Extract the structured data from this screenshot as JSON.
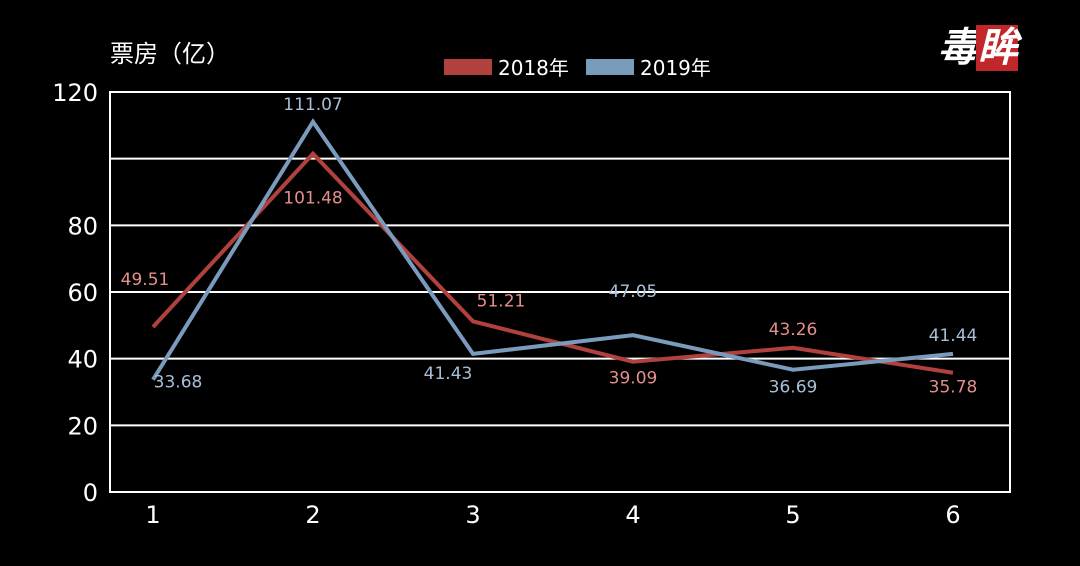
{
  "logo": {
    "char1": "毒",
    "char2": "眸"
  },
  "colors": {
    "background": "#000000",
    "axis": "#ffffff",
    "grid": "#ffffff"
  },
  "chart_data": {
    "type": "line",
    "title": "",
    "xlabel": "",
    "ylabel": "票房（亿）",
    "categories": [
      "1",
      "2",
      "3",
      "4",
      "5",
      "6"
    ],
    "ylim": [
      0,
      120
    ],
    "yticks": [
      "0",
      "20",
      "40",
      "60",
      "80",
      "120"
    ],
    "grid": true,
    "legend_position": "top-center",
    "series": [
      {
        "name": "2018年",
        "color": "#b0413e",
        "label_color": "#e48f8b",
        "values": [
          49.51,
          101.48,
          51.21,
          39.09,
          43.26,
          35.78
        ],
        "labels": [
          "49.51",
          "101.48",
          "51.21",
          "39.09",
          "43.26",
          "35.78"
        ]
      },
      {
        "name": "2019年",
        "color": "#7b9bbd",
        "label_color": "#a8bfd6",
        "values": [
          33.68,
          111.07,
          41.43,
          47.05,
          36.69,
          41.44
        ],
        "labels": [
          "33.68",
          "111.07",
          "41.43",
          "47.05",
          "36.69",
          "41.44"
        ]
      }
    ]
  }
}
